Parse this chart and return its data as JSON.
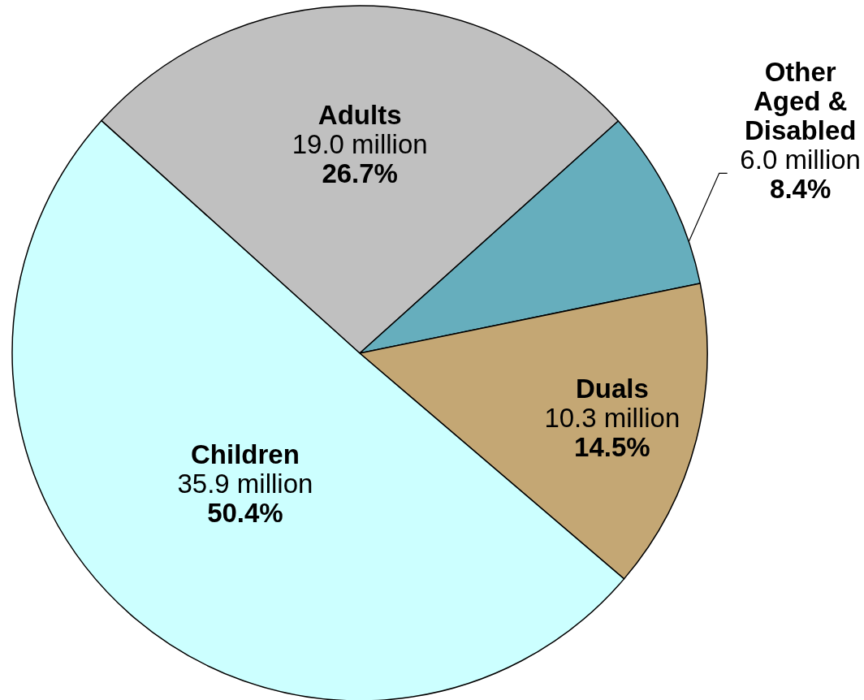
{
  "chart_data": {
    "type": "pie",
    "categories": [
      "Adults",
      "Other Aged & Disabled",
      "Duals",
      "Children"
    ],
    "values": [
      19.0,
      6.0,
      10.3,
      35.9
    ],
    "colors": [
      "#c0c0c0",
      "#66aebd",
      "#c4a774",
      "#ccffff"
    ],
    "value_labels": [
      "19.0 million",
      "6.0 million",
      "10.3 million",
      "35.9 million"
    ],
    "annotations": [
      "26.7%",
      "8.4%",
      "14.5%",
      "50.4%"
    ]
  }
}
